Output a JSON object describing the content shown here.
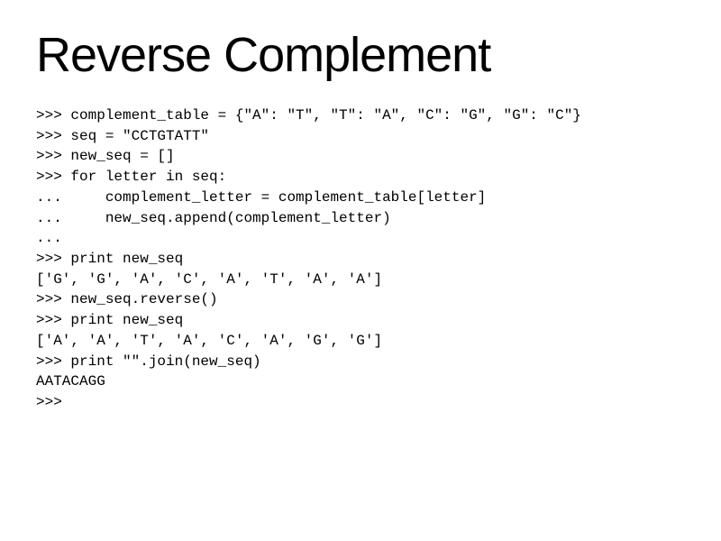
{
  "title": "Reverse Complement",
  "code_lines": [
    ">>> complement_table = {\"A\": \"T\", \"T\": \"A\", \"C\": \"G\", \"G\": \"C\"}",
    ">>> seq = \"CCTGTATT\"",
    ">>> new_seq = []",
    ">>> for letter in seq:",
    "...     complement_letter = complement_table[letter]",
    "...     new_seq.append(complement_letter)",
    "... ",
    ">>> print new_seq",
    "['G', 'G', 'A', 'C', 'A', 'T', 'A', 'A']",
    ">>> new_seq.reverse()",
    ">>> print new_seq",
    "['A', 'A', 'T', 'A', 'C', 'A', 'G', 'G']",
    ">>> print \"\".join(new_seq)",
    "AATACAGG",
    ">>> "
  ],
  "style": {
    "title_fontsize": 54,
    "title_color": "#000000",
    "code_fontsize": 16,
    "code_fontfamily": "Courier New",
    "code_color": "#000000",
    "background_color": "#ffffff",
    "slide_width": 800,
    "slide_height": 600
  }
}
